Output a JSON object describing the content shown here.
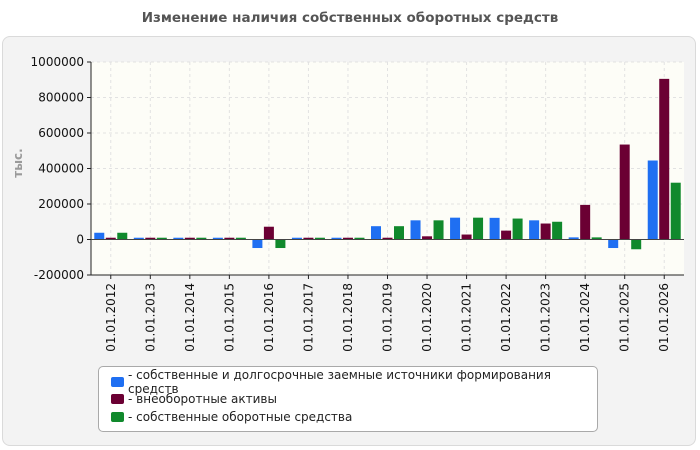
{
  "chart_data": {
    "type": "bar",
    "title": "Изменение наличия собственных оборотных средств",
    "ylabel": "тыс.",
    "xlabel": "",
    "ylim": [
      -200000,
      1000000
    ],
    "yticks": [
      1000000,
      800000,
      600000,
      400000,
      200000,
      0,
      -200000
    ],
    "grid": true,
    "legend_position": "bottom",
    "categories": [
      "01.01.2012",
      "01.01.2013",
      "01.01.2014",
      "01.01.2015",
      "01.01.2016",
      "01.01.2017",
      "01.01.2018",
      "01.01.2019",
      "01.01.2020",
      "01.01.2021",
      "01.01.2022",
      "01.01.2023",
      "01.01.2024",
      "01.01.2025",
      "01.01.2026"
    ],
    "series": [
      {
        "name": "- собственные и долгосрочные заемные источники формирования средств",
        "color": "#1f6ff2",
        "values": [
          38000,
          10000,
          10000,
          10000,
          -48000,
          10000,
          10000,
          75000,
          108000,
          123000,
          122000,
          108000,
          12000,
          -48000,
          445000
        ]
      },
      {
        "name": "- внеоборотные активы",
        "color": "#6b0033",
        "values": [
          10000,
          10000,
          10000,
          10000,
          72000,
          10000,
          10000,
          10000,
          18000,
          28000,
          50000,
          90000,
          195000,
          535000,
          905000
        ]
      },
      {
        "name": "- собственные оборотные средства",
        "color": "#10892c",
        "values": [
          38000,
          10000,
          10000,
          10000,
          -48000,
          10000,
          10000,
          75000,
          108000,
          123000,
          118000,
          100000,
          12000,
          -55000,
          320000
        ]
      }
    ]
  }
}
